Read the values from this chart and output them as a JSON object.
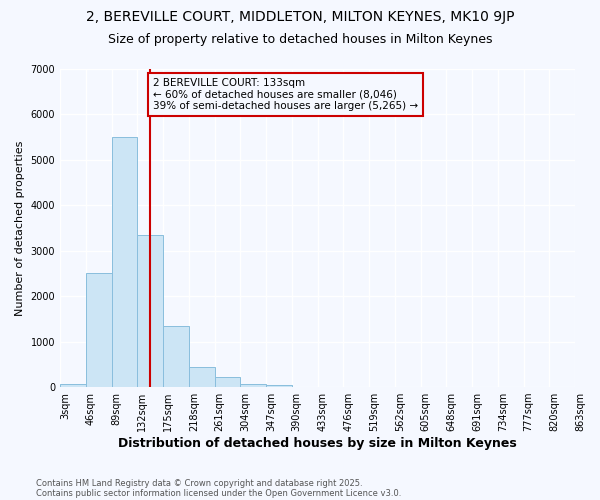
{
  "title_line1": "2, BEREVILLE COURT, MIDDLETON, MILTON KEYNES, MK10 9JP",
  "title_line2": "Size of property relative to detached houses in Milton Keynes",
  "xlabel": "Distribution of detached houses by size in Milton Keynes",
  "ylabel": "Number of detached properties",
  "bar_color": "#cce5f5",
  "bar_edge_color": "#89bedd",
  "bar_values": [
    75,
    2500,
    5500,
    3350,
    1350,
    450,
    225,
    75,
    50,
    5,
    2,
    0,
    0,
    0,
    0,
    0,
    0,
    0,
    0,
    0
  ],
  "bin_labels": [
    "3sqm",
    "46sqm",
    "89sqm",
    "132sqm",
    "175sqm",
    "218sqm",
    "261sqm",
    "304sqm",
    "347sqm",
    "390sqm",
    "433sqm",
    "476sqm",
    "519sqm",
    "562sqm",
    "605sqm",
    "648sqm",
    "691sqm",
    "734sqm",
    "777sqm",
    "820sqm",
    "863sqm"
  ],
  "vline_x": 3.0,
  "vline_color": "#cc0000",
  "ylim": [
    0,
    7000
  ],
  "annotation_text": "2 BEREVILLE COURT: 133sqm\n← 60% of detached houses are smaller (8,046)\n39% of semi-detached houses are larger (5,265) →",
  "footnote_line1": "Contains HM Land Registry data © Crown copyright and database right 2025.",
  "footnote_line2": "Contains public sector information licensed under the Open Government Licence v3.0.",
  "bg_color": "#f5f8ff",
  "grid_color": "#ffffff",
  "title1_fontsize": 10,
  "title2_fontsize": 9,
  "ylabel_fontsize": 8,
  "xlabel_fontsize": 9,
  "tick_fontsize": 7,
  "annot_fontsize": 7.5,
  "footnote_fontsize": 6
}
